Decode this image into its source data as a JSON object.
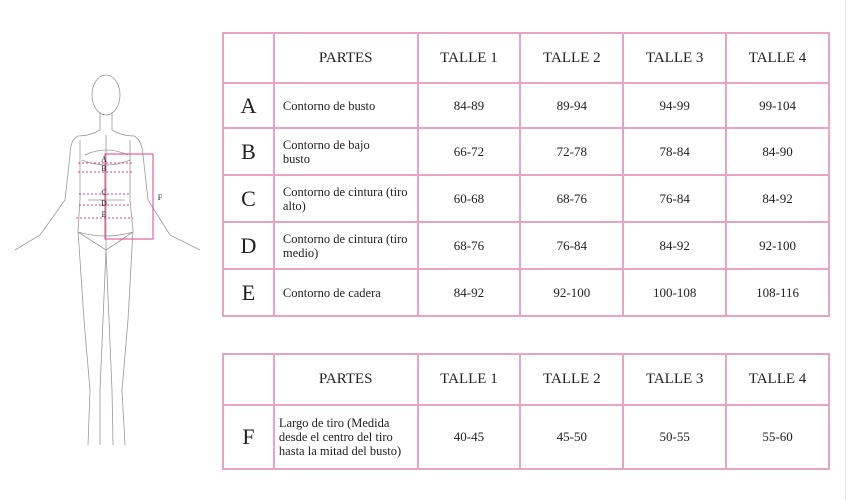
{
  "figure": {
    "labels": [
      "A",
      "B",
      "C",
      "D",
      "E",
      "F"
    ]
  },
  "table1": {
    "headers": [
      "",
      "PARTES",
      "TALLE 1",
      "TALLE 2",
      "TALLE 3",
      "TALLE 4"
    ],
    "rows": [
      {
        "letter": "A",
        "part": "Contorno de busto",
        "values": [
          "84-89",
          "89-94",
          "94-99",
          "99-104"
        ]
      },
      {
        "letter": "B",
        "part": "Contorno de bajo busto",
        "values": [
          "66-72",
          "72-78",
          "78-84",
          "84-90"
        ]
      },
      {
        "letter": "C",
        "part": "Contorno de cintura (tiro alto)",
        "values": [
          "60-68",
          "68-76",
          "76-84",
          "84-92"
        ]
      },
      {
        "letter": "D",
        "part": "Contorno de cintura (tiro medio)",
        "values": [
          "68-76",
          "76-84",
          "84-92",
          "92-100"
        ]
      },
      {
        "letter": "E",
        "part": "Contorno de cadera",
        "values": [
          "84-92",
          "92-100",
          "100-108",
          "108-116"
        ]
      }
    ]
  },
  "table2": {
    "headers": [
      "",
      "PARTES",
      "TALLE 1",
      "TALLE 2",
      "TALLE 3",
      "TALLE 4"
    ],
    "rows": [
      {
        "letter": "F",
        "part": "Largo de tiro (Medida desde el centro del tiro hasta la mitad del busto)",
        "values": [
          "40-45",
          "45-50",
          "50-55",
          "55-60"
        ]
      }
    ]
  },
  "colors": {
    "border": "#e9a3c3",
    "measure": "#e0408a"
  }
}
